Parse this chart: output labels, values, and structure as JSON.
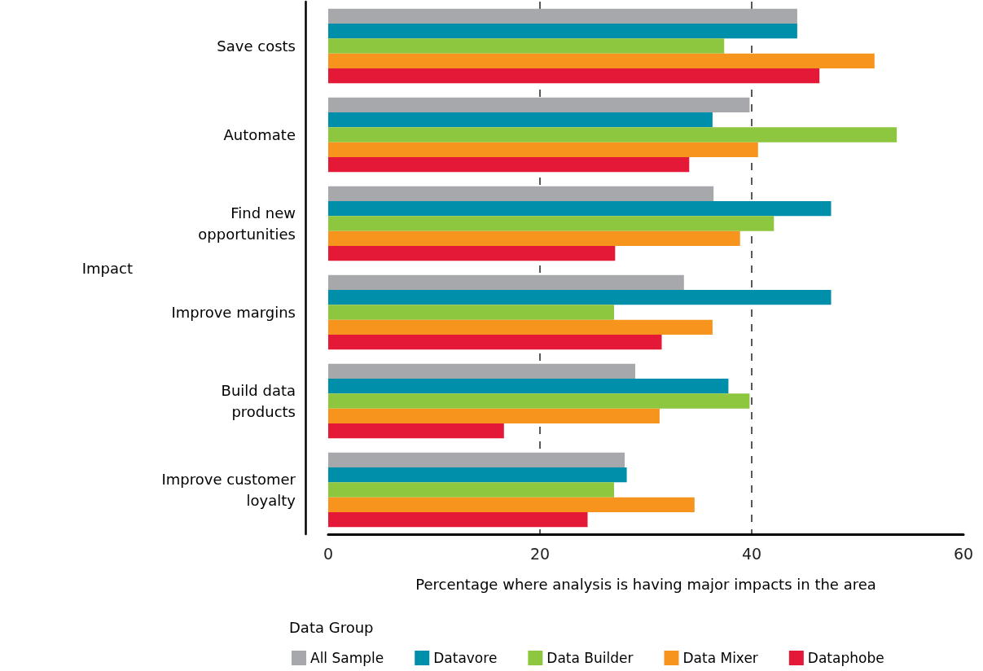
{
  "chart_data": {
    "type": "bar",
    "orientation": "horizontal",
    "categories": [
      "Save costs",
      "Automate",
      "Find new opportunities",
      "Improve margins",
      "Build data products",
      "Improve customer loyalty"
    ],
    "series": [
      {
        "name": "All Sample",
        "color": "#a7a8ab",
        "values": [
          44.3,
          39.8,
          36.4,
          33.6,
          29.0,
          28.0
        ]
      },
      {
        "name": "Datavore",
        "color": "#008fab",
        "values": [
          44.3,
          36.3,
          47.5,
          47.5,
          37.8,
          28.2
        ]
      },
      {
        "name": "Data Builder",
        "color": "#8dc63f",
        "values": [
          37.4,
          53.7,
          42.1,
          27.0,
          39.8,
          27.0
        ]
      },
      {
        "name": "Data Mixer",
        "color": "#f7941d",
        "values": [
          51.6,
          40.6,
          38.9,
          36.3,
          31.3,
          34.6
        ]
      },
      {
        "name": "Dataphobe",
        "color": "#e31937",
        "values": [
          46.4,
          34.1,
          27.1,
          31.5,
          16.6,
          24.5
        ]
      }
    ],
    "xlim": [
      0,
      60
    ],
    "xticks": [
      0,
      20,
      40,
      60
    ],
    "xlabel": "Percentage where analysis is having major impacts in the area",
    "ylabel": "Impact",
    "legend_title": "Data Group",
    "legend": "bottom left",
    "grid": "x"
  }
}
